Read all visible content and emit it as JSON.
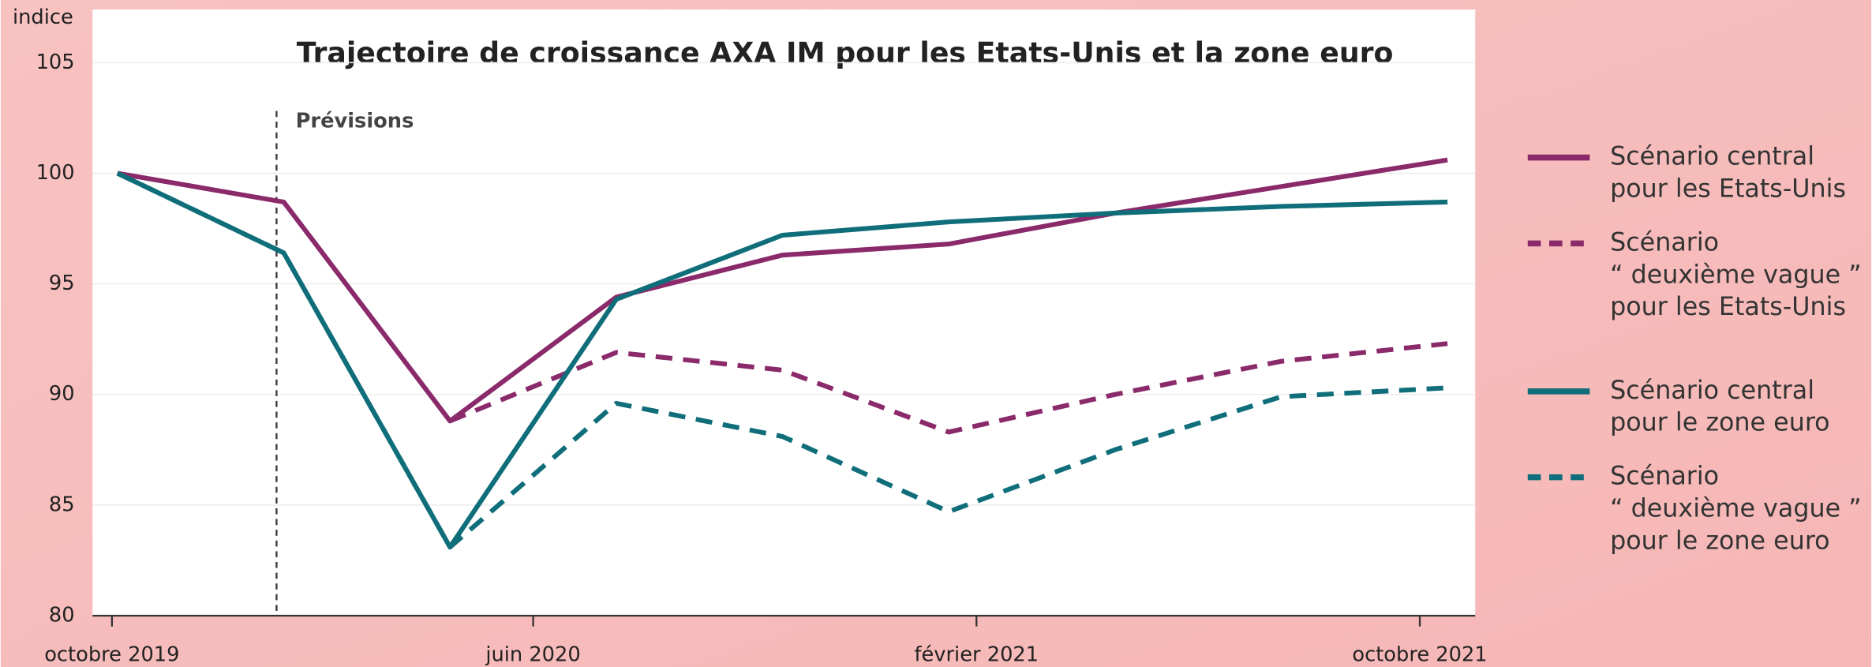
{
  "chart_data": {
    "type": "line",
    "title": "Trajectoire de croissance AXA IM pour les Etats-Unis et la zone euro",
    "y_label": "indice",
    "annotation": {
      "text": "Prévisions",
      "x": 2.87
    },
    "x": [
      0,
      3,
      6,
      9,
      12,
      15,
      18,
      21,
      24
    ],
    "series": [
      {
        "name": "Scénario central\npour les Etats-Unis",
        "color": "#8a2a6b",
        "dashed": false,
        "values": [
          100,
          98.7,
          88.8,
          94.4,
          96.3,
          96.8,
          98.2,
          99.4,
          100.6
        ]
      },
      {
        "name": "Scénario\n“ deuxième vague ”\npour les Etats-Unis",
        "color": "#8a2a6b",
        "dashed": true,
        "values": [
          null,
          null,
          88.8,
          91.9,
          91.1,
          88.3,
          90.0,
          91.5,
          92.3
        ]
      },
      {
        "name": "Scénario central\npour le zone euro",
        "color": "#0f6e7a",
        "dashed": false,
        "values": [
          100,
          96.4,
          83.1,
          94.3,
          97.2,
          97.8,
          98.2,
          98.5,
          98.7
        ]
      },
      {
        "name": "Scénario\n“ deuxième vague ”\npour le zone euro",
        "color": "#0f6e7a",
        "dashed": true,
        "values": [
          100,
          96.4,
          83.1,
          89.6,
          88.1,
          84.7,
          87.5,
          89.9,
          90.3
        ]
      }
    ],
    "xlim": [
      -0.45,
      24.5
    ],
    "xticks": [
      {
        "value": -0.1,
        "label": "octobre 2019"
      },
      {
        "value": 7.5,
        "label": "juin 2020"
      },
      {
        "value": 15.5,
        "label": "février 2021"
      },
      {
        "value": 23.5,
        "label": "octobre 2021"
      }
    ],
    "ylim": [
      80,
      107.4
    ],
    "yticks": [
      80,
      85,
      90,
      95,
      100,
      105
    ],
    "grid": true
  }
}
